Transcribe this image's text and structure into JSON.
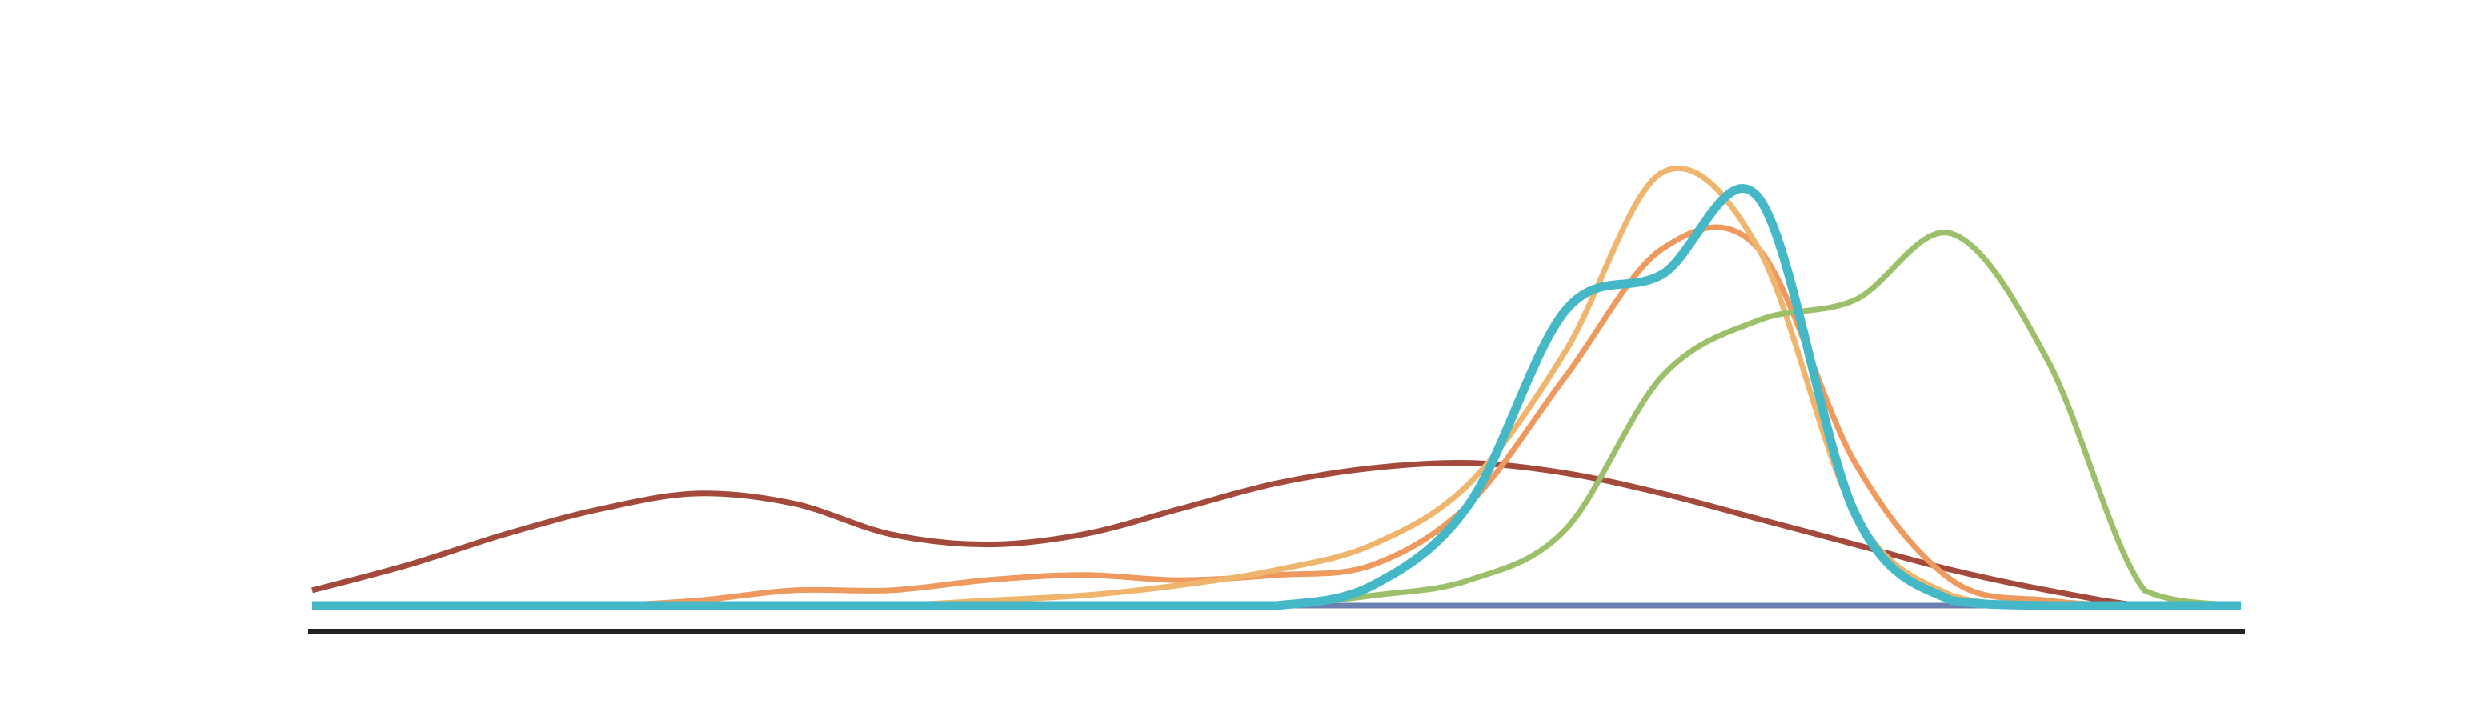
{
  "chart_data": {
    "type": "line",
    "title": "",
    "xlabel": "",
    "ylabel": "",
    "grid": false,
    "legend": "none",
    "xlim": [
      0,
      1
    ],
    "ylim": [
      0,
      1
    ],
    "x": [
      0.0,
      0.05,
      0.1,
      0.15,
      0.2,
      0.25,
      0.3,
      0.35,
      0.4,
      0.45,
      0.5,
      0.55,
      0.6,
      0.65,
      0.7,
      0.75,
      0.8,
      0.85,
      0.9,
      0.95,
      1.0
    ],
    "series": [
      {
        "color": "#6b7fb0",
        "stroke": 7,
        "values": [
          0,
          0,
          0,
          0,
          0,
          0,
          0,
          0,
          0,
          0,
          0,
          0,
          0,
          0,
          0,
          0,
          0,
          0,
          0,
          0,
          0
        ]
      },
      {
        "color": "#a34a3c",
        "stroke": 7,
        "values": [
          0.03,
          0.08,
          0.14,
          0.19,
          0.22,
          0.2,
          0.14,
          0.12,
          0.14,
          0.19,
          0.24,
          0.27,
          0.28,
          0.26,
          0.22,
          0.17,
          0.12,
          0.07,
          0.03,
          0.0,
          0.0
        ]
      },
      {
        "color": "#ee9a5f",
        "stroke": 7,
        "values": [
          0,
          0,
          0,
          0,
          0.01,
          0.03,
          0.03,
          0.05,
          0.06,
          0.05,
          0.06,
          0.08,
          0.2,
          0.45,
          0.7,
          0.7,
          0.28,
          0.05,
          0.01,
          0.0,
          0.0
        ]
      },
      {
        "color": "#f0b56c",
        "stroke": 7,
        "values": [
          0,
          0,
          0,
          0,
          0,
          0,
          0,
          0.01,
          0.02,
          0.04,
          0.07,
          0.12,
          0.24,
          0.5,
          0.85,
          0.7,
          0.18,
          0.02,
          0,
          0,
          0
        ]
      },
      {
        "color": "#9cc06a",
        "stroke": 7,
        "values": [
          0,
          0,
          0,
          0,
          0,
          0,
          0,
          0,
          0,
          0,
          0,
          0.02,
          0.05,
          0.15,
          0.45,
          0.56,
          0.6,
          0.73,
          0.48,
          0.03,
          0.0
        ]
      },
      {
        "color": "#45b8c8",
        "stroke": 11,
        "values": [
          0,
          0,
          0,
          0,
          0,
          0,
          0,
          0,
          0,
          0,
          0,
          0.04,
          0.2,
          0.58,
          0.65,
          0.8,
          0.18,
          0.01,
          0,
          0,
          0
        ]
      }
    ]
  }
}
